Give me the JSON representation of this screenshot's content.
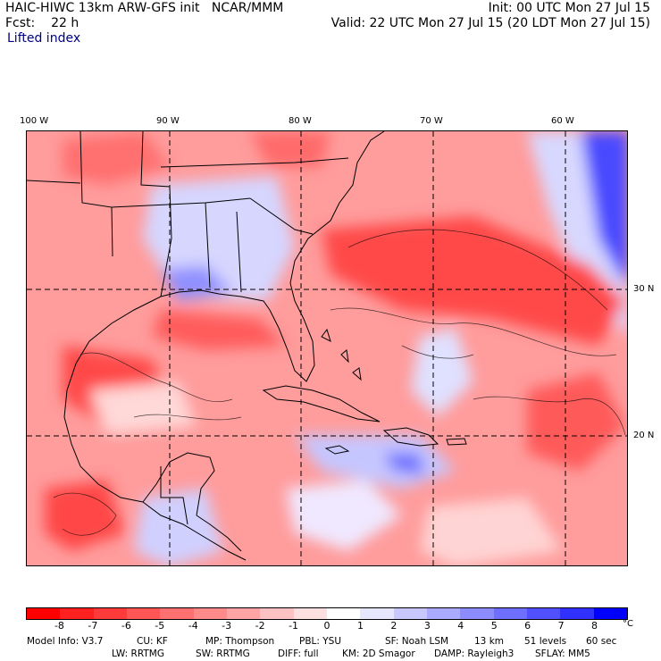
{
  "header": {
    "model": "HAIC-HIWC 13km ARW-GFS init",
    "org": "NCAR/MMM",
    "init": "Init: 00 UTC Mon 27 Jul 15",
    "fcst_label": "Fcst:",
    "fcst_value": "22 h",
    "valid": "Valid: 22 UTC Mon 27 Jul 15 (20 LDT Mon 27 Jul 15)",
    "field": "Lifted index"
  },
  "map": {
    "lon_labels": [
      "100 W",
      "90 W",
      "80 W",
      "70 W",
      "60 W"
    ],
    "lat_labels": [
      "30 N",
      "20 N"
    ]
  },
  "colorbar": {
    "unit": "°C",
    "labels": [
      "-8",
      "-7",
      "-6",
      "-5",
      "-4",
      "-3",
      "-2",
      "-1",
      "0",
      "1",
      "2",
      "3",
      "4",
      "5",
      "6",
      "7",
      "8"
    ],
    "colors": [
      "#ff0000",
      "#ff2020",
      "#ff3a3a",
      "#ff5555",
      "#ff7070",
      "#ff8a8a",
      "#ffa4a4",
      "#ffc2c2",
      "#ffe0e0",
      "#ffffff",
      "#e6e6ff",
      "#c8c8ff",
      "#aaaaff",
      "#8c8cff",
      "#6e6eff",
      "#5050ff",
      "#3030ff",
      "#0000ff"
    ]
  },
  "footer": {
    "line1": [
      "Model Info: V3.7",
      "CU: KF",
      "MP: Thompson",
      "PBL: YSU",
      "SF: Noah LSM",
      "13 km",
      "51 levels",
      "60 sec"
    ],
    "line2": [
      "LW: RRTMG",
      "SW: RRTMG",
      "DIFF: full",
      "KM: 2D Smagor",
      "DAMP: Rayleigh3",
      "SFLAY: MM5"
    ]
  }
}
